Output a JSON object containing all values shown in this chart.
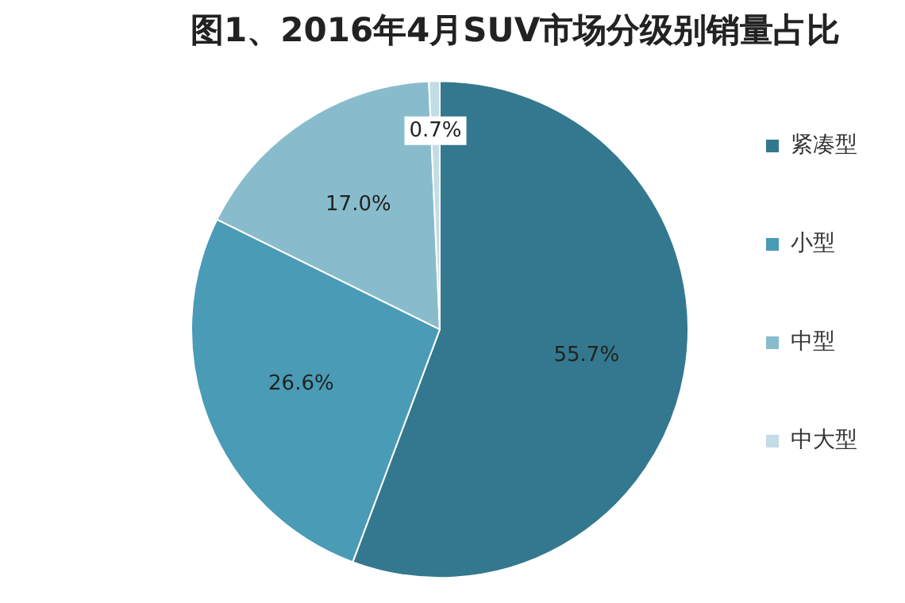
{
  "chart_data": {
    "type": "pie",
    "title": "图1、2016年4月SUV市场分级别销量占比",
    "categories": [
      "紧凑型",
      "小型",
      "中型",
      "中大型"
    ],
    "values": [
      55.7,
      26.6,
      17.0,
      0.7
    ],
    "colors": [
      "#33788f",
      "#4a9bb5",
      "#88bccd",
      "#c3dce5"
    ],
    "value_labels": [
      "55.7%",
      "26.6%",
      "17.0%",
      "0.7%"
    ],
    "legend": "right"
  }
}
